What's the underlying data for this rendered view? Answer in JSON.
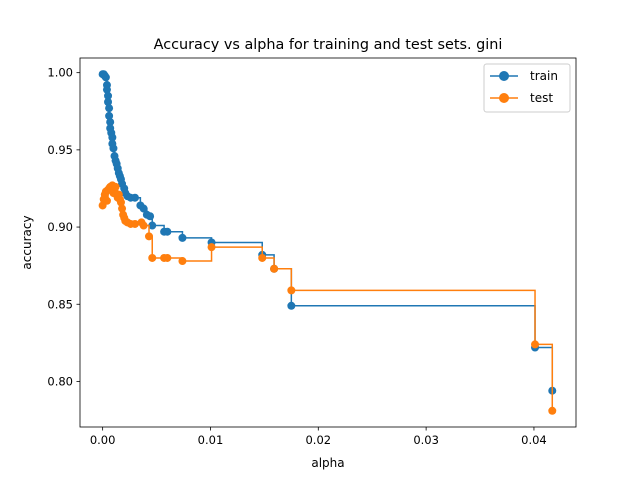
{
  "chart_data": {
    "type": "line",
    "drawstyle": "steps-post",
    "marker": "circle",
    "title": "Accuracy vs alpha for training and test sets. gini",
    "xlabel": "alpha",
    "ylabel": "accuracy",
    "xlim": [
      -0.0021,
      0.0439
    ],
    "ylim": [
      0.7705,
      1.0095
    ],
    "xticks": [
      0.0,
      0.01,
      0.02,
      0.03,
      0.04
    ],
    "xtick_labels": [
      "0.00",
      "0.01",
      "0.02",
      "0.03",
      "0.04"
    ],
    "yticks": [
      0.8,
      0.85,
      0.9,
      0.95,
      1.0
    ],
    "ytick_labels": [
      "0.80",
      "0.85",
      "0.90",
      "0.95",
      "1.00"
    ],
    "grid": false,
    "legend_position": "top-right",
    "series": [
      {
        "name": "train",
        "color": "#1f77b4",
        "points": [
          [
            0.0,
            0.999
          ],
          [
            0.0001,
            0.999
          ],
          [
            0.0002,
            0.998
          ],
          [
            0.0003,
            0.997
          ],
          [
            0.0004,
            0.992
          ],
          [
            0.0004,
            0.989
          ],
          [
            0.0005,
            0.985
          ],
          [
            0.0005,
            0.981
          ],
          [
            0.0006,
            0.977
          ],
          [
            0.0006,
            0.972
          ],
          [
            0.0007,
            0.968
          ],
          [
            0.0007,
            0.964
          ],
          [
            0.0008,
            0.961
          ],
          [
            0.0009,
            0.958
          ],
          [
            0.0009,
            0.954
          ],
          [
            0.001,
            0.951
          ],
          [
            0.0011,
            0.946
          ],
          [
            0.0012,
            0.943
          ],
          [
            0.0013,
            0.941
          ],
          [
            0.0014,
            0.938
          ],
          [
            0.0015,
            0.935
          ],
          [
            0.0016,
            0.933
          ],
          [
            0.0017,
            0.931
          ],
          [
            0.0018,
            0.928
          ],
          [
            0.002,
            0.925
          ],
          [
            0.0021,
            0.922
          ],
          [
            0.0023,
            0.92
          ],
          [
            0.0026,
            0.919
          ],
          [
            0.003,
            0.919
          ],
          [
            0.0035,
            0.914
          ],
          [
            0.0038,
            0.912
          ],
          [
            0.0041,
            0.908
          ],
          [
            0.0044,
            0.907
          ],
          [
            0.0046,
            0.901
          ],
          [
            0.0057,
            0.897
          ],
          [
            0.006,
            0.897
          ],
          [
            0.0074,
            0.893
          ],
          [
            0.0101,
            0.89
          ],
          [
            0.0148,
            0.882
          ],
          [
            0.0159,
            0.873
          ],
          [
            0.0175,
            0.849
          ],
          [
            0.0401,
            0.822
          ],
          [
            0.0417,
            0.794
          ]
        ]
      },
      {
        "name": "test",
        "color": "#ff7f0e",
        "points": [
          [
            0.0,
            0.914
          ],
          [
            0.0001,
            0.918
          ],
          [
            0.0002,
            0.921
          ],
          [
            0.0003,
            0.923
          ],
          [
            0.0004,
            0.917
          ],
          [
            0.0005,
            0.924
          ],
          [
            0.0006,
            0.925
          ],
          [
            0.0007,
            0.926
          ],
          [
            0.0008,
            0.924
          ],
          [
            0.0009,
            0.927
          ],
          [
            0.001,
            0.922
          ],
          [
            0.0011,
            0.924
          ],
          [
            0.0012,
            0.926
          ],
          [
            0.0013,
            0.921
          ],
          [
            0.0014,
            0.919
          ],
          [
            0.0015,
            0.921
          ],
          [
            0.0016,
            0.918
          ],
          [
            0.0017,
            0.916
          ],
          [
            0.0018,
            0.912
          ],
          [
            0.0019,
            0.908
          ],
          [
            0.002,
            0.906
          ],
          [
            0.0021,
            0.904
          ],
          [
            0.0023,
            0.903
          ],
          [
            0.0026,
            0.902
          ],
          [
            0.003,
            0.902
          ],
          [
            0.0036,
            0.903
          ],
          [
            0.0038,
            0.901
          ],
          [
            0.0043,
            0.894
          ],
          [
            0.0046,
            0.88
          ],
          [
            0.0057,
            0.88
          ],
          [
            0.006,
            0.88
          ],
          [
            0.0074,
            0.878
          ],
          [
            0.0101,
            0.887
          ],
          [
            0.0148,
            0.88
          ],
          [
            0.0159,
            0.873
          ],
          [
            0.0175,
            0.859
          ],
          [
            0.0401,
            0.824
          ],
          [
            0.0417,
            0.781
          ]
        ]
      }
    ]
  }
}
